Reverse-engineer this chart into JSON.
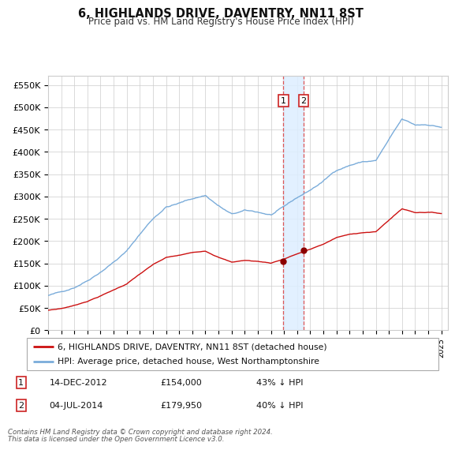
{
  "title": "6, HIGHLANDS DRIVE, DAVENTRY, NN11 8ST",
  "subtitle": "Price paid vs. HM Land Registry's House Price Index (HPI)",
  "ylim": [
    0,
    570000
  ],
  "yticks": [
    0,
    50000,
    100000,
    150000,
    200000,
    250000,
    300000,
    350000,
    400000,
    450000,
    500000,
    550000
  ],
  "ytick_labels": [
    "£0",
    "£50K",
    "£100K",
    "£150K",
    "£200K",
    "£250K",
    "£300K",
    "£350K",
    "£400K",
    "£450K",
    "£500K",
    "£550K"
  ],
  "hpi_color": "#7aacda",
  "price_color": "#cc1111",
  "marker_color": "#8b0000",
  "transaction1_x": 2012.95,
  "transaction1_y": 154000,
  "transaction2_x": 2014.5,
  "transaction2_y": 179950,
  "legend_label1": "6, HIGHLANDS DRIVE, DAVENTRY, NN11 8ST (detached house)",
  "legend_label2": "HPI: Average price, detached house, West Northamptonshire",
  "table_row1": [
    "1",
    "14-DEC-2012",
    "£154,000",
    "43% ↓ HPI"
  ],
  "table_row2": [
    "2",
    "04-JUL-2014",
    "£179,950",
    "40% ↓ HPI"
  ],
  "footnote1": "Contains HM Land Registry data © Crown copyright and database right 2024.",
  "footnote2": "This data is licensed under the Open Government Licence v3.0.",
  "bg_color": "#ffffff",
  "grid_color": "#cccccc",
  "shade_color": "#ddeeff",
  "xlim_start": 1995.0,
  "xlim_end": 2025.5
}
